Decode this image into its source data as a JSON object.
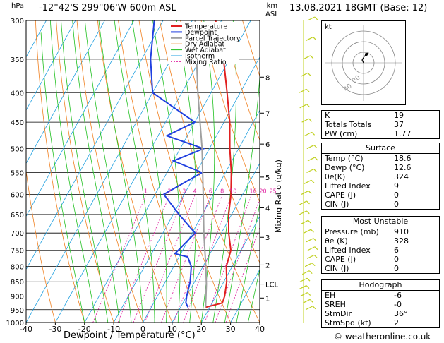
{
  "header": {
    "hpa": "hPa",
    "station": "-12°42'S 299°06'W 600m ASL",
    "km": "km",
    "asl": "ASL",
    "datetime": "13.08.2021 18GMT (Base: 12)"
  },
  "footer": {
    "xlabel": "Dewpoint / Temperature (°C)",
    "website": "© weatheronline.co.uk"
  },
  "mixing_ratio_label": "Mixing Ratio (g/kg)",
  "colors": {
    "temperature": "#e02020",
    "dewpoint": "#2040e0",
    "parcel": "#a0a0a0",
    "dry_adiabat": "#f08020",
    "wet_adiabat": "#20c020",
    "isotherm": "#20a0e0",
    "mixing_ratio": "#e020a0",
    "barb": "#c0d020"
  },
  "legend": [
    "Temperature",
    "Dewpoint",
    "Parcel Trajectory",
    "Dry Adiabat",
    "Wet Adiabat",
    "Isotherm",
    "Mixing Ratio"
  ],
  "chart_data": {
    "type": "line",
    "x_axis": {
      "ticks": [
        -40,
        -30,
        -20,
        -10,
        0,
        10,
        20,
        30,
        40
      ],
      "range": [
        -40,
        40
      ],
      "label": "Dewpoint / Temperature (°C)"
    },
    "y_axis": {
      "ticks": [
        300,
        350,
        400,
        450,
        500,
        550,
        600,
        650,
        700,
        750,
        800,
        850,
        900,
        950,
        1000
      ],
      "range": [
        300,
        1000
      ],
      "scale": "log",
      "label": "hPa"
    },
    "km_ticks": [
      {
        "label": "1",
        "p": 907
      },
      {
        "label": "LCL",
        "p": 858
      },
      {
        "label": "2",
        "p": 795
      },
      {
        "label": "3",
        "p": 712
      },
      {
        "label": "4",
        "p": 633
      },
      {
        "label": "5",
        "p": 560
      },
      {
        "label": "6",
        "p": 491
      },
      {
        "label": "7",
        "p": 434
      },
      {
        "label": "8",
        "p": 376
      }
    ],
    "mixing_ratio_values": [
      1,
      2,
      3,
      4,
      6,
      8,
      10,
      16,
      20,
      25
    ],
    "series": [
      {
        "name": "Temperature",
        "points": [
          [
            941,
            18.6
          ],
          [
            925,
            23.5
          ],
          [
            900,
            23.0
          ],
          [
            850,
            21.0
          ],
          [
            800,
            18.0
          ],
          [
            750,
            16.5
          ],
          [
            700,
            12.5
          ],
          [
            650,
            9.0
          ],
          [
            600,
            6.0
          ],
          [
            550,
            2.0
          ],
          [
            500,
            -3.0
          ],
          [
            450,
            -8.0
          ],
          [
            400,
            -14.5
          ],
          [
            350,
            -22.0
          ],
          [
            300,
            -32.0
          ]
        ]
      },
      {
        "name": "Dewpoint",
        "points": [
          [
            941,
            12.6
          ],
          [
            925,
            11.0
          ],
          [
            900,
            10.0
          ],
          [
            850,
            8.5
          ],
          [
            800,
            6.0
          ],
          [
            770,
            3.0
          ],
          [
            760,
            -2.0
          ],
          [
            700,
            1.0
          ],
          [
            650,
            -8.0
          ],
          [
            600,
            -17.0
          ],
          [
            550,
            -8.0
          ],
          [
            525,
            -20.0
          ],
          [
            500,
            -12.0
          ],
          [
            475,
            -27.0
          ],
          [
            450,
            -20.0
          ],
          [
            400,
            -40.0
          ],
          [
            350,
            -47.0
          ],
          [
            300,
            -53.0
          ]
        ]
      },
      {
        "name": "Parcel Trajectory",
        "points": [
          [
            941,
            18.6
          ],
          [
            858,
            14.5
          ],
          [
            800,
            11.0
          ],
          [
            700,
            4.0
          ],
          [
            600,
            -3.5
          ],
          [
            500,
            -12.5
          ],
          [
            400,
            -24.5
          ],
          [
            300,
            -39.0
          ]
        ]
      }
    ]
  },
  "hodograph": {
    "label": "kt",
    "ring_labels": [
      "40",
      "30"
    ]
  },
  "indices": [
    {
      "label": "K",
      "value": "19"
    },
    {
      "label": "Totals Totals",
      "value": "37"
    },
    {
      "label": "PW (cm)",
      "value": "1.77"
    }
  ],
  "surface": {
    "title": "Surface",
    "rows": [
      {
        "label": "Temp (°C)",
        "value": "18.6"
      },
      {
        "label": "Dewp (°C)",
        "value": "12.6"
      },
      {
        "label": "θe(K)",
        "value": "324"
      },
      {
        "label": "Lifted Index",
        "value": "9"
      },
      {
        "label": "CAPE (J)",
        "value": "0"
      },
      {
        "label": "CIN (J)",
        "value": "0"
      }
    ]
  },
  "most_unstable": {
    "title": "Most Unstable",
    "rows": [
      {
        "label": "Pressure (mb)",
        "value": "910"
      },
      {
        "label": "θe (K)",
        "value": "328"
      },
      {
        "label": "Lifted Index",
        "value": "6"
      },
      {
        "label": "CAPE (J)",
        "value": "0"
      },
      {
        "label": "CIN (J)",
        "value": "0"
      }
    ]
  },
  "hodograph_table": {
    "title": "Hodograph",
    "rows": [
      {
        "label": "EH",
        "value": "-6"
      },
      {
        "label": "SREH",
        "value": "-0"
      },
      {
        "label": "StmDir",
        "value": "36°"
      },
      {
        "label": "StmSpd (kt)",
        "value": "2"
      }
    ]
  }
}
